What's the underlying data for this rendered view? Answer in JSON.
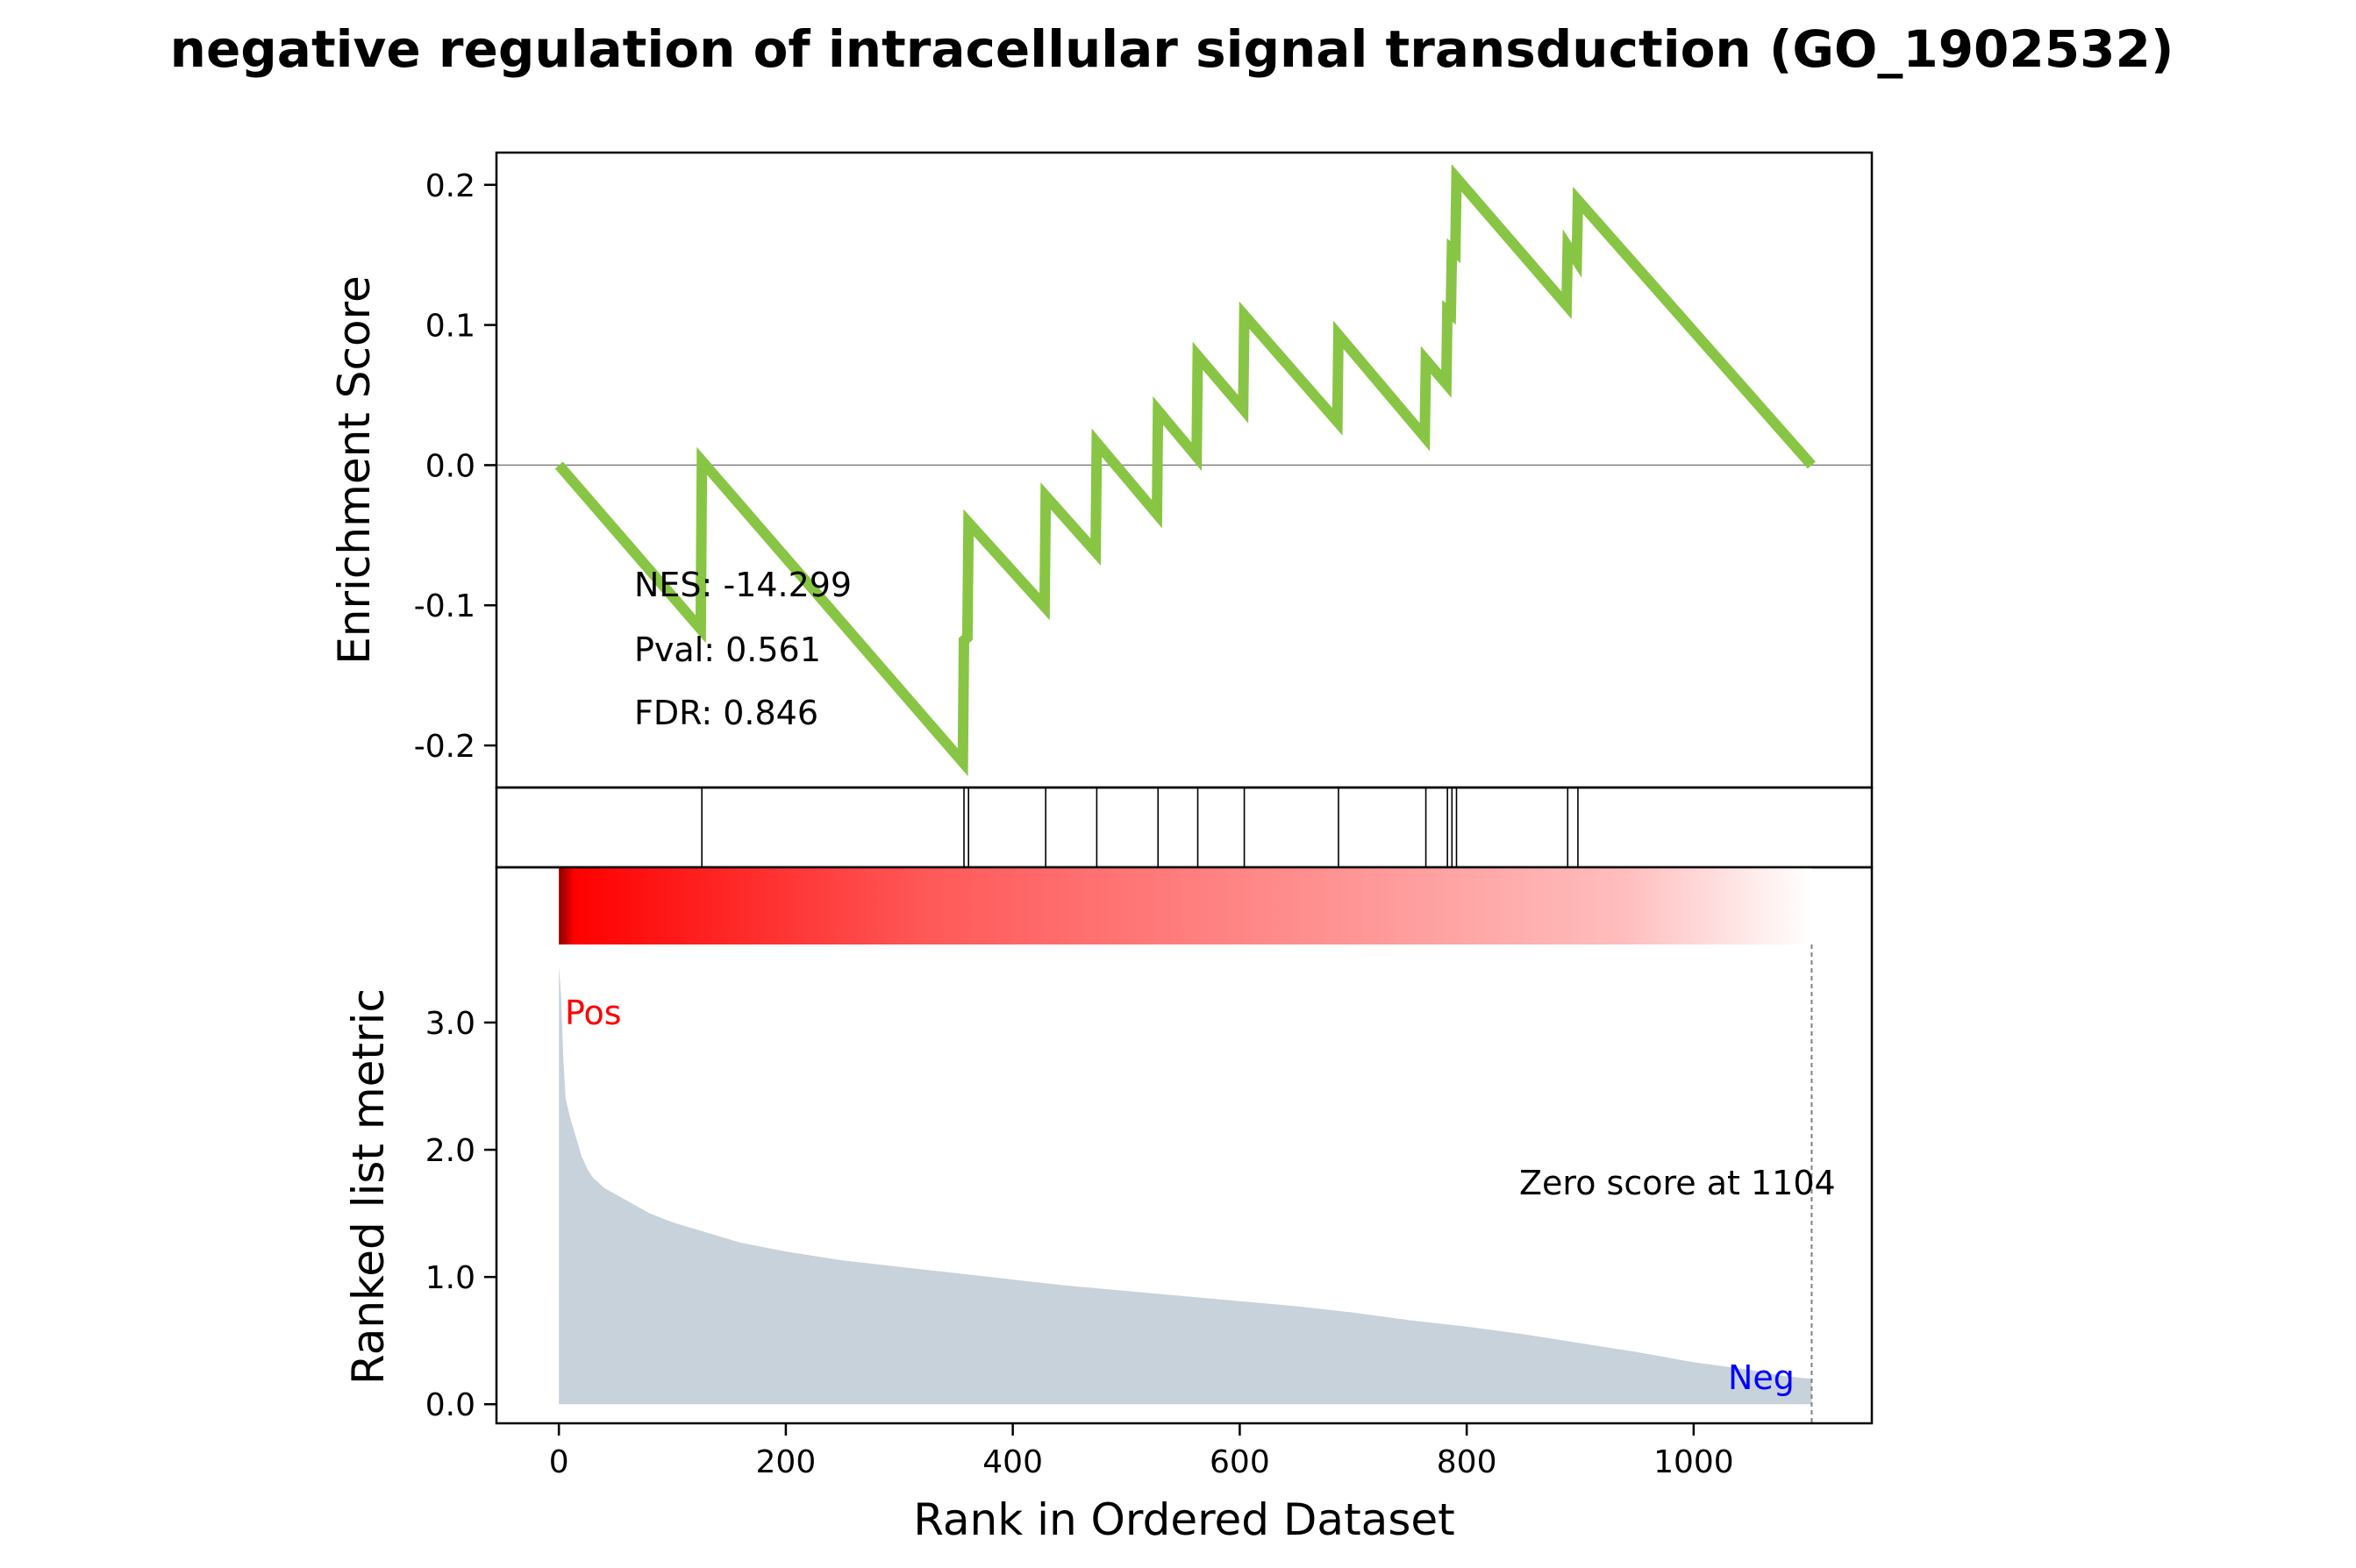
{
  "chart_data": {
    "type": "line",
    "title": "negative regulation of intracellular signal transduction (GO_1902532)",
    "xlabel": "Rank in Ordered Dataset",
    "xlim": [
      -55,
      1157
    ],
    "xticks": [
      0,
      200,
      400,
      600,
      800,
      1000
    ],
    "enrichment": {
      "ylabel": "Enrichment Score",
      "ylim": [
        -0.23,
        0.223
      ],
      "yticks": [
        -0.2,
        -0.1,
        0.0,
        0.1,
        0.2
      ],
      "ytick_labels": [
        "-0.2",
        "-0.1",
        "0.0",
        "0.1",
        "0.2"
      ],
      "color": "#88c544",
      "points": [
        [
          0,
          0.0
        ],
        [
          125,
          -0.117
        ],
        [
          126,
          0.003
        ],
        [
          356,
          -0.212
        ],
        [
          357,
          -0.125
        ],
        [
          360,
          -0.123
        ],
        [
          361,
          -0.041
        ],
        [
          428,
          -0.101
        ],
        [
          429,
          -0.022
        ],
        [
          473,
          -0.062
        ],
        [
          474,
          0.016
        ],
        [
          527,
          -0.035
        ],
        [
          528,
          0.039
        ],
        [
          562,
          0.006
        ],
        [
          563,
          0.078
        ],
        [
          603,
          0.04
        ],
        [
          604,
          0.107
        ],
        [
          686,
          0.031
        ],
        [
          687,
          0.093
        ],
        [
          763,
          0.02
        ],
        [
          764,
          0.075
        ],
        [
          782,
          0.058
        ],
        [
          783,
          0.11
        ],
        [
          786,
          0.108
        ],
        [
          787,
          0.154
        ],
        [
          790,
          0.152
        ],
        [
          791,
          0.205
        ],
        [
          888,
          0.114
        ],
        [
          889,
          0.156
        ],
        [
          897,
          0.146
        ],
        [
          898,
          0.189
        ],
        [
          1104,
          0.0
        ]
      ],
      "annotations": [
        "NES: -14.299",
        "Pval: 0.561",
        "FDR: 0.846"
      ]
    },
    "hits": [
      126,
      357,
      361,
      429,
      474,
      528,
      563,
      604,
      687,
      764,
      783,
      787,
      791,
      889,
      898
    ],
    "ranked_metric": {
      "ylabel": "Ranked list metric",
      "ylim": [
        -0.15,
        4.22
      ],
      "yticks": [
        0.0,
        1.0,
        2.0,
        3.0
      ],
      "ytick_labels": [
        "0.0",
        "1.0",
        "2.0",
        "3.0"
      ],
      "fill_color": "#c8d2da",
      "points": [
        [
          0,
          3.45
        ],
        [
          2,
          3.2
        ],
        [
          4,
          2.7
        ],
        [
          6,
          2.4
        ],
        [
          10,
          2.25
        ],
        [
          15,
          2.1
        ],
        [
          20,
          1.95
        ],
        [
          25,
          1.85
        ],
        [
          30,
          1.78
        ],
        [
          40,
          1.7
        ],
        [
          50,
          1.65
        ],
        [
          60,
          1.6
        ],
        [
          80,
          1.5
        ],
        [
          100,
          1.43
        ],
        [
          130,
          1.35
        ],
        [
          160,
          1.27
        ],
        [
          200,
          1.2
        ],
        [
          250,
          1.13
        ],
        [
          300,
          1.08
        ],
        [
          350,
          1.03
        ],
        [
          400,
          0.98
        ],
        [
          450,
          0.93
        ],
        [
          500,
          0.89
        ],
        [
          550,
          0.85
        ],
        [
          600,
          0.81
        ],
        [
          650,
          0.77
        ],
        [
          700,
          0.72
        ],
        [
          750,
          0.66
        ],
        [
          800,
          0.61
        ],
        [
          850,
          0.55
        ],
        [
          900,
          0.48
        ],
        [
          950,
          0.41
        ],
        [
          1000,
          0.33
        ],
        [
          1050,
          0.27
        ],
        [
          1080,
          0.22
        ],
        [
          1104,
          0.2
        ]
      ],
      "zero_line": 1104,
      "zero_label": "Zero score at 1104",
      "pos_label": "Pos",
      "neg_label": "Neg"
    }
  }
}
